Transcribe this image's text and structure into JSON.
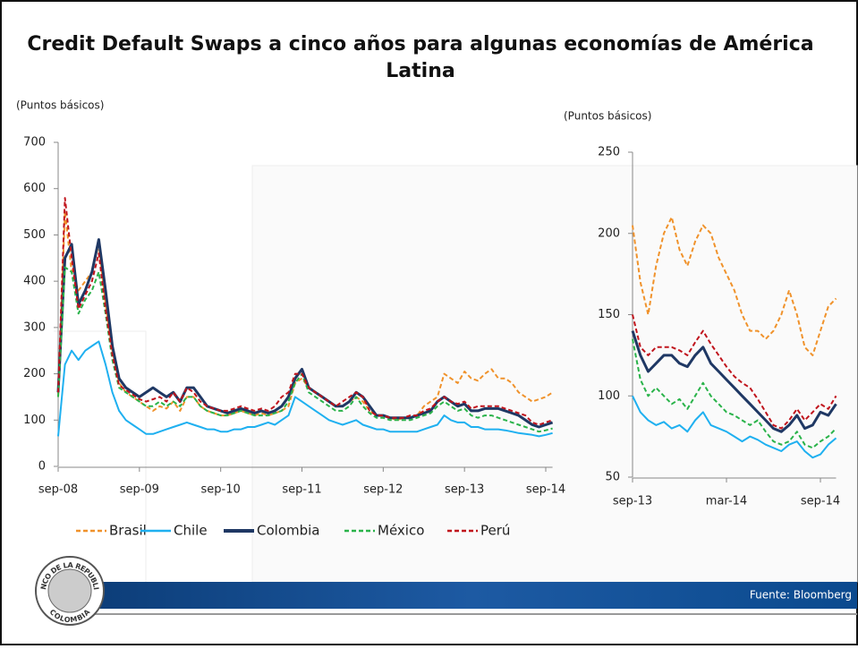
{
  "title": "Credit Default Swaps a cinco años para algunas economías de América Latina",
  "source": "Fuente: Bloomberg",
  "logo": {
    "top": "BANCO DE LA REPUBLICA",
    "bottom": "COLOMBIA"
  },
  "chart_data": [
    {
      "type": "line",
      "y_label": "(Puntos básicos)",
      "legend": true,
      "categories": [
        "sep-08",
        null,
        null,
        null,
        null,
        null,
        null,
        null,
        null,
        null,
        null,
        null,
        "sep-09",
        null,
        null,
        null,
        null,
        null,
        null,
        null,
        null,
        null,
        null,
        null,
        "sep-10",
        null,
        null,
        null,
        null,
        null,
        null,
        null,
        null,
        null,
        null,
        null,
        "sep-11",
        null,
        null,
        null,
        null,
        null,
        null,
        null,
        null,
        null,
        null,
        null,
        "sep-12",
        null,
        null,
        null,
        null,
        null,
        null,
        null,
        null,
        null,
        null,
        null,
        "sep-13",
        null,
        null,
        null,
        null,
        null,
        null,
        null,
        null,
        null,
        null,
        null,
        "sep-14",
        null
      ],
      "ylim": [
        0,
        700
      ],
      "yticks": [
        0,
        100,
        200,
        300,
        400,
        500,
        600,
        700
      ],
      "series": [
        {
          "name": "Brasil",
          "color": "#f0922b",
          "dashed": true,
          "values": [
            150,
            550,
            420,
            380,
            400,
            420,
            480,
            350,
            250,
            180,
            160,
            150,
            140,
            130,
            120,
            130,
            125,
            140,
            120,
            150,
            150,
            130,
            120,
            115,
            110,
            110,
            115,
            120,
            115,
            110,
            115,
            110,
            115,
            120,
            130,
            180,
            190,
            170,
            160,
            150,
            140,
            130,
            130,
            140,
            150,
            140,
            120,
            110,
            110,
            105,
            100,
            105,
            105,
            110,
            130,
            140,
            150,
            200,
            190,
            180,
            205,
            190,
            185,
            200,
            210,
            190,
            190,
            180,
            160,
            150,
            140,
            145,
            150,
            160
          ]
        },
        {
          "name": "Chile",
          "color": "#1fb0f0",
          "dashed": false,
          "values": [
            65,
            220,
            250,
            230,
            250,
            260,
            270,
            220,
            160,
            120,
            100,
            90,
            80,
            70,
            70,
            75,
            80,
            85,
            90,
            95,
            90,
            85,
            80,
            80,
            75,
            75,
            80,
            80,
            85,
            85,
            90,
            95,
            90,
            100,
            110,
            150,
            140,
            130,
            120,
            110,
            100,
            95,
            90,
            95,
            100,
            90,
            85,
            80,
            80,
            75,
            75,
            75,
            75,
            75,
            80,
            85,
            90,
            110,
            100,
            95,
            95,
            85,
            85,
            80,
            80,
            80,
            78,
            75,
            72,
            70,
            68,
            65,
            68,
            72
          ]
        },
        {
          "name": "Colombia",
          "color": "#1f3864",
          "dashed": false,
          "values": [
            160,
            450,
            480,
            350,
            380,
            420,
            490,
            380,
            260,
            190,
            170,
            160,
            150,
            160,
            170,
            160,
            150,
            160,
            140,
            170,
            170,
            150,
            130,
            125,
            120,
            115,
            120,
            125,
            120,
            115,
            120,
            115,
            120,
            130,
            150,
            190,
            210,
            170,
            160,
            150,
            140,
            130,
            130,
            140,
            160,
            150,
            130,
            110,
            110,
            105,
            105,
            105,
            105,
            110,
            115,
            120,
            140,
            150,
            140,
            130,
            135,
            120,
            120,
            125,
            125,
            125,
            120,
            115,
            110,
            100,
            90,
            85,
            90,
            95
          ]
        },
        {
          "name": "México",
          "color": "#2ab34a",
          "dashed": true,
          "values": [
            150,
            430,
            420,
            330,
            360,
            380,
            420,
            330,
            230,
            170,
            160,
            150,
            140,
            130,
            130,
            140,
            130,
            140,
            130,
            150,
            150,
            130,
            120,
            115,
            110,
            110,
            115,
            120,
            115,
            110,
            110,
            110,
            115,
            120,
            140,
            180,
            200,
            160,
            150,
            140,
            130,
            120,
            120,
            130,
            150,
            130,
            115,
            105,
            105,
            100,
            100,
            100,
            100,
            105,
            110,
            115,
            130,
            140,
            130,
            120,
            125,
            110,
            105,
            110,
            110,
            105,
            100,
            95,
            90,
            85,
            80,
            75,
            78,
            82
          ]
        },
        {
          "name": "Perú",
          "color": "#c0141c",
          "dashed": true,
          "values": [
            160,
            580,
            450,
            340,
            370,
            400,
            460,
            340,
            240,
            175,
            165,
            155,
            145,
            140,
            145,
            150,
            140,
            160,
            140,
            170,
            160,
            140,
            130,
            125,
            120,
            120,
            125,
            130,
            125,
            120,
            125,
            120,
            130,
            150,
            160,
            200,
            200,
            170,
            160,
            150,
            140,
            130,
            140,
            150,
            160,
            150,
            120,
            110,
            110,
            105,
            105,
            105,
            110,
            110,
            120,
            125,
            140,
            150,
            140,
            135,
            140,
            125,
            130,
            130,
            130,
            130,
            125,
            120,
            115,
            110,
            95,
            90,
            95,
            100
          ]
        }
      ]
    },
    {
      "type": "line",
      "y_label": "(Puntos básicos)",
      "legend": false,
      "categories": [
        "sep-13",
        null,
        null,
        null,
        null,
        null,
        null,
        null,
        null,
        null,
        null,
        null,
        "mar-14",
        null,
        null,
        null,
        null,
        null,
        null,
        null,
        null,
        null,
        null,
        null,
        "sep-14",
        null,
        null
      ],
      "ylim": [
        50,
        250
      ],
      "yticks": [
        50,
        100,
        150,
        200,
        250
      ],
      "series": [
        {
          "name": "Brasil",
          "color": "#f0922b",
          "dashed": true,
          "values": [
            205,
            170,
            150,
            180,
            200,
            210,
            190,
            180,
            195,
            205,
            200,
            185,
            175,
            165,
            150,
            140,
            140,
            135,
            140,
            150,
            165,
            150,
            130,
            125,
            140,
            155,
            160
          ]
        },
        {
          "name": "Chile",
          "color": "#1fb0f0",
          "dashed": false,
          "values": [
            100,
            90,
            85,
            82,
            84,
            80,
            82,
            78,
            85,
            90,
            82,
            80,
            78,
            75,
            72,
            75,
            73,
            70,
            68,
            66,
            70,
            72,
            66,
            62,
            64,
            70,
            74
          ]
        },
        {
          "name": "Colombia",
          "color": "#1f3864",
          "dashed": false,
          "values": [
            140,
            125,
            115,
            120,
            125,
            125,
            120,
            118,
            125,
            130,
            120,
            115,
            110,
            105,
            100,
            95,
            90,
            85,
            80,
            78,
            82,
            88,
            80,
            82,
            90,
            88,
            95
          ]
        },
        {
          "name": "México",
          "color": "#2ab34a",
          "dashed": true,
          "values": [
            135,
            110,
            100,
            105,
            100,
            95,
            98,
            92,
            100,
            108,
            100,
            95,
            90,
            88,
            85,
            82,
            85,
            78,
            72,
            70,
            72,
            78,
            70,
            68,
            72,
            75,
            80
          ]
        },
        {
          "name": "Perú",
          "color": "#c0141c",
          "dashed": true,
          "values": [
            150,
            130,
            125,
            130,
            130,
            130,
            128,
            125,
            133,
            140,
            132,
            125,
            118,
            112,
            108,
            105,
            98,
            90,
            82,
            80,
            85,
            92,
            85,
            90,
            95,
            92,
            100
          ]
        }
      ]
    }
  ]
}
